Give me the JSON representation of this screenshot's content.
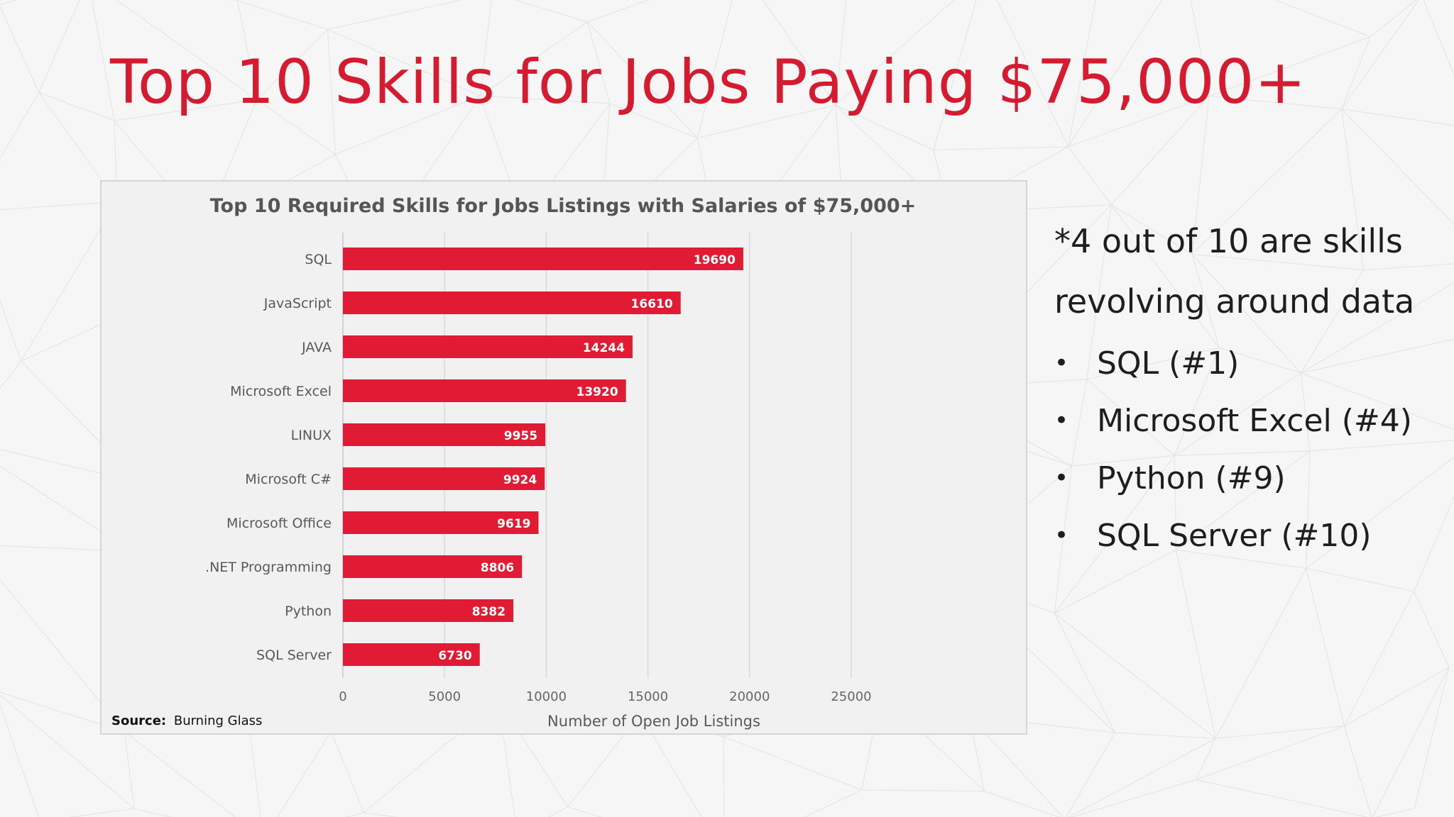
{
  "slide": {
    "title": "Top 10 Skills for Jobs Paying $75,000+",
    "accent_color": "#d51b2f"
  },
  "notes": {
    "headline": "*4 out of 10 are skills revolving around data",
    "bullet_symbol": "•",
    "items": [
      "SQL (#1)",
      "Microsoft Excel (#4)",
      "Python (#9)",
      "SQL Server (#10)"
    ]
  },
  "chart_data": {
    "type": "bar",
    "orientation": "horizontal",
    "title": "Top 10 Required Skills for Jobs Listings with Salaries of $75,000+",
    "categories": [
      "SQL",
      "JavaScript",
      "JAVA",
      "Microsoft Excel",
      "LINUX",
      "Microsoft C#",
      "Microsoft Office",
      ".NET Programming",
      "Python",
      "SQL Server"
    ],
    "values": [
      19690,
      16610,
      14244,
      13920,
      9955,
      9924,
      9619,
      8806,
      8382,
      6730
    ],
    "xlabel": "Number of Open Job Listings",
    "ylabel": "",
    "xlim": [
      0,
      25000
    ],
    "xticks": [
      "0",
      "5000",
      "10000",
      "15000",
      "20000",
      "25000"
    ],
    "grid": true,
    "bar_color": "#e01b33",
    "data_labels": true,
    "source_label": "Source:",
    "source_text": "Burning Glass"
  }
}
